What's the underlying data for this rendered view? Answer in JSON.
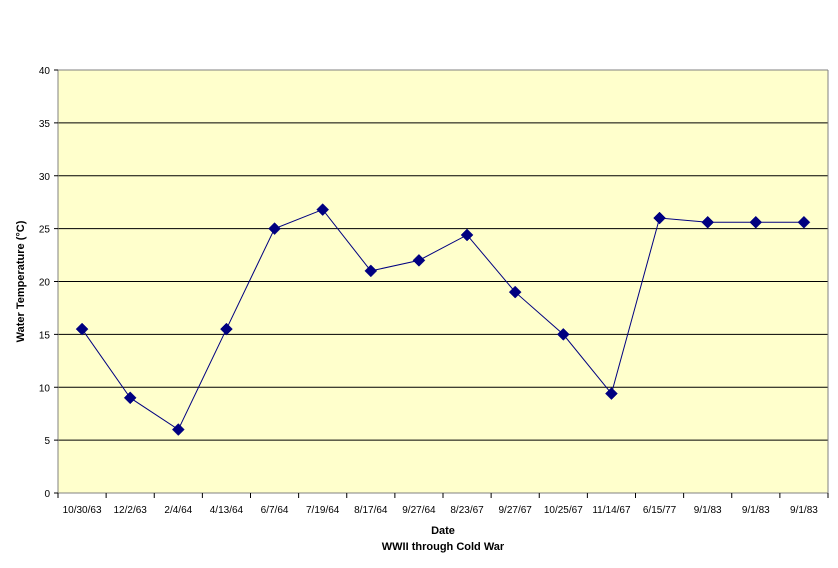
{
  "chart_data": {
    "type": "line",
    "xlabel": "Date",
    "subtitle": "WWII through Cold War",
    "ylabel": "Water Temperature (°C)",
    "ylim": [
      0,
      40
    ],
    "yticks": [
      0,
      5,
      10,
      15,
      20,
      25,
      30,
      35,
      40
    ],
    "grid": "horizontal",
    "categories": [
      "10/30/63",
      "12/2/63",
      "2/4/64",
      "4/13/64",
      "6/7/64",
      "7/19/64",
      "8/17/64",
      "9/27/64",
      "8/23/67",
      "9/27/67",
      "10/25/67",
      "11/14/67",
      "6/15/77",
      "9/1/83",
      "9/1/83",
      "9/1/83"
    ],
    "series": [
      {
        "values": [
          15.5,
          9,
          6,
          15.5,
          25,
          26.8,
          21,
          22,
          24.4,
          19,
          15,
          9.4,
          26,
          25.6,
          25.6,
          25.6
        ]
      }
    ],
    "colors": {
      "plot_background": "#ffffcc",
      "line": "#000080",
      "marker": "#000080",
      "grid": "#000000"
    }
  }
}
